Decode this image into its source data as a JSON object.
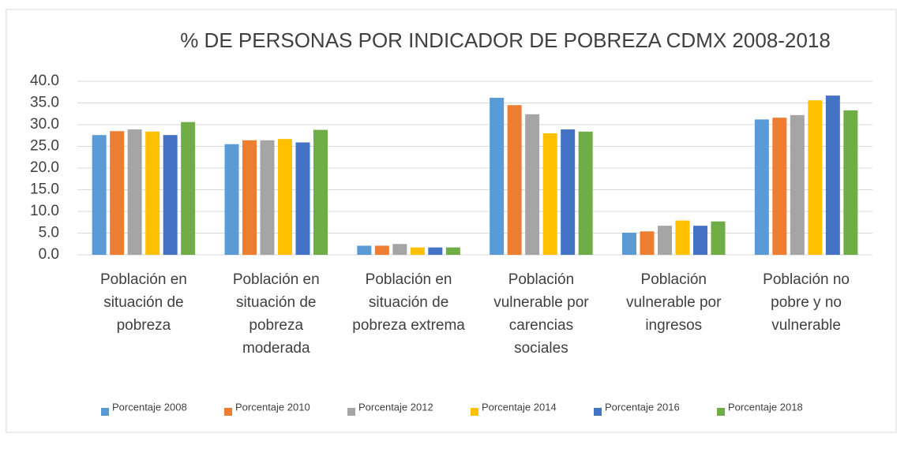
{
  "chart_data": {
    "type": "bar",
    "title": "% DE PERSONAS POR INDICADOR DE POBREZA CDMX 2008-2018",
    "categories": [
      [
        "Población en",
        "situación de",
        "pobreza"
      ],
      [
        "Población en",
        "situación de",
        "pobreza",
        "moderada"
      ],
      [
        "Población en",
        "situación de",
        "pobreza extrema"
      ],
      [
        "Población",
        "vulnerable por",
        "carencias",
        "sociales"
      ],
      [
        "Población",
        "vulnerable por",
        "ingresos"
      ],
      [
        "Población no",
        "pobre y no",
        "vulnerable"
      ]
    ],
    "series": [
      {
        "name": "Porcentaje 2008",
        "color": "#5b9bd5",
        "values": [
          27.6,
          25.5,
          2.1,
          36.2,
          5.1,
          31.2
        ]
      },
      {
        "name": "Porcentaje 2010",
        "color": "#ed7d31",
        "values": [
          28.5,
          26.4,
          2.1,
          34.5,
          5.4,
          31.6
        ]
      },
      {
        "name": "Porcentaje 2012",
        "color": "#a5a5a5",
        "values": [
          28.9,
          26.4,
          2.5,
          32.4,
          6.7,
          32.2
        ]
      },
      {
        "name": "Porcentaje 2014",
        "color": "#ffc000",
        "values": [
          28.4,
          26.7,
          1.7,
          28.0,
          7.9,
          35.6
        ]
      },
      {
        "name": "Porcentaje 2016",
        "color": "#4472c4",
        "values": [
          27.6,
          25.9,
          1.7,
          28.9,
          6.7,
          36.7
        ]
      },
      {
        "name": "Porcentaje 2018",
        "color": "#70ad47",
        "values": [
          30.6,
          28.8,
          1.7,
          28.4,
          7.7,
          33.3
        ]
      }
    ],
    "ylim": [
      0,
      40
    ],
    "yticks": [
      {
        "value": 0,
        "label": "0.0"
      },
      {
        "value": 5,
        "label": "5.0"
      },
      {
        "value": 10,
        "label": "10.0"
      },
      {
        "value": 15,
        "label": "15.0"
      },
      {
        "value": 20,
        "label": "20.0"
      },
      {
        "value": 25,
        "label": "25.0"
      },
      {
        "value": 30,
        "label": "30.0"
      },
      {
        "value": 35,
        "label": "35.0"
      },
      {
        "value": 40,
        "label": "40.0"
      }
    ],
    "grid": true,
    "legend": "bottom"
  }
}
